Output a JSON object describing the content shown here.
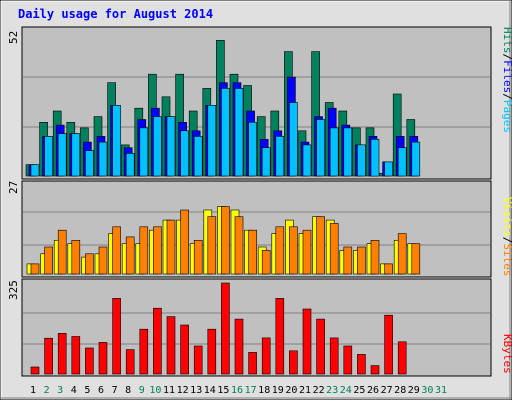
{
  "title": "Daily usage for August 2014",
  "panels": {
    "top": {
      "max_label": "52"
    },
    "middle": {
      "max_label": "27"
    },
    "bottom": {
      "max_label": "325"
    }
  },
  "legend": {
    "hits": "Hits",
    "files": "Files",
    "pages": "Pages",
    "visits": "Visits",
    "sites": "Sites",
    "kbytes": "KBytes",
    "sep": "/"
  },
  "colors": {
    "background": "#C0C0C0",
    "page_bg": "#E0E0E0",
    "title": "#0000FF",
    "hits": "#00805C",
    "files": "#0000FF",
    "pages": "#00C0FF",
    "visits": "#FFFF00",
    "sites": "#FF8000",
    "kbytes": "#FF0000",
    "weekday_label": "#000000",
    "weekend_label": "#00805C"
  },
  "chart_data": [
    {
      "type": "bar",
      "title": "Daily usage for August 2014",
      "categories": [
        "1",
        "2",
        "3",
        "4",
        "5",
        "6",
        "7",
        "8",
        "9",
        "10",
        "11",
        "12",
        "13",
        "14",
        "15",
        "16",
        "17",
        "18",
        "19",
        "20",
        "21",
        "22",
        "23",
        "24",
        "25",
        "26",
        "27",
        "28",
        "29",
        "30",
        "31"
      ],
      "weekend_days": [
        "2",
        "3",
        "9",
        "10",
        "16",
        "17",
        "23",
        "24",
        "30",
        "31"
      ],
      "ylim": [
        0,
        52
      ],
      "series": [
        {
          "name": "Hits",
          "values": [
            4,
            19,
            23,
            19,
            17,
            21,
            33,
            11,
            24,
            36,
            28,
            36,
            23,
            31,
            48,
            36,
            32,
            21,
            23,
            44,
            16,
            44,
            26,
            23,
            17,
            17,
            1,
            29,
            20,
            0,
            0
          ]
        },
        {
          "name": "Files",
          "values": [
            4,
            14,
            18,
            15,
            12,
            14,
            25,
            10,
            20,
            24,
            21,
            19,
            16,
            25,
            33,
            33,
            23,
            13,
            16,
            35,
            12,
            21,
            24,
            18,
            11,
            14,
            5,
            14,
            14,
            0,
            0
          ]
        },
        {
          "name": "Pages",
          "values": [
            4,
            14,
            15,
            15,
            9,
            12,
            25,
            8,
            17,
            21,
            21,
            16,
            14,
            25,
            31,
            31,
            19,
            10,
            14,
            26,
            11,
            20,
            17,
            17,
            11,
            13,
            5,
            10,
            12,
            0,
            0
          ]
        }
      ]
    },
    {
      "type": "bar",
      "categories": [
        "1",
        "2",
        "3",
        "4",
        "5",
        "6",
        "7",
        "8",
        "9",
        "10",
        "11",
        "12",
        "13",
        "14",
        "15",
        "16",
        "17",
        "18",
        "19",
        "20",
        "21",
        "22",
        "23",
        "24",
        "25",
        "26",
        "27",
        "28",
        "29",
        "30",
        "31"
      ],
      "ylim": [
        0,
        27
      ],
      "series": [
        {
          "name": "Visits",
          "values": [
            3,
            6,
            10,
            9,
            5,
            6,
            12,
            9,
            9,
            13,
            16,
            16,
            9,
            19,
            20,
            19,
            13,
            8,
            12,
            16,
            12,
            17,
            16,
            7,
            7,
            9,
            3,
            10,
            9,
            0,
            0
          ]
        },
        {
          "name": "Sites",
          "values": [
            3,
            8,
            13,
            10,
            6,
            8,
            14,
            11,
            14,
            14,
            16,
            19,
            10,
            17,
            20,
            17,
            13,
            7,
            14,
            14,
            13,
            17,
            15,
            8,
            8,
            10,
            3,
            12,
            9,
            0,
            0
          ]
        }
      ]
    },
    {
      "type": "bar",
      "categories": [
        "1",
        "2",
        "3",
        "4",
        "5",
        "6",
        "7",
        "8",
        "9",
        "10",
        "11",
        "12",
        "13",
        "14",
        "15",
        "16",
        "17",
        "18",
        "19",
        "20",
        "21",
        "22",
        "23",
        "24",
        "25",
        "26",
        "27",
        "28",
        "29",
        "30",
        "31"
      ],
      "ylim": [
        0,
        325
      ],
      "series": [
        {
          "name": "KBytes",
          "values": [
            25,
            128,
            145,
            134,
            93,
            113,
            270,
            87,
            160,
            235,
            205,
            175,
            100,
            160,
            325,
            196,
            77,
            129,
            270,
            83,
            232,
            196,
            129,
            100,
            70,
            30,
            210,
            115,
            0,
            0,
            0
          ]
        }
      ]
    }
  ]
}
